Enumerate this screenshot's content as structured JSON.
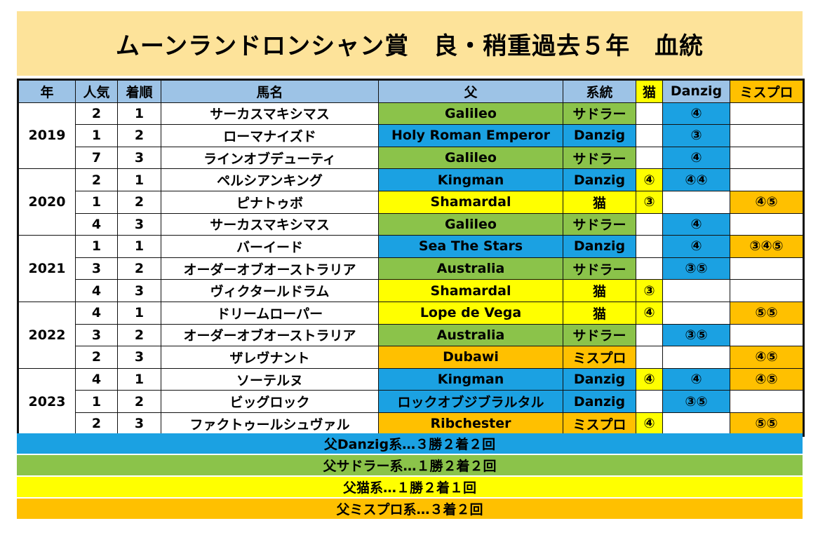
{
  "title": "ムーンランドロンシャン賞　良・稍重過去５年　血統",
  "headers": [
    "年",
    "人気",
    "着順",
    "馬名",
    "父",
    "系統",
    "猫",
    "Danzig",
    "ミスプロ"
  ],
  "colors": {
    "sadler": "#8bc34a",
    "danzig": "#1ba1e2",
    "neko": "#ffff00",
    "mispro": "#ffc000",
    "header": "#9dc3e6",
    "title_bg": "#fde39a"
  },
  "years": [
    {
      "year": "2019",
      "rows": [
        {
          "pop": "2",
          "place": "1",
          "horse": "サーカスマキシマス",
          "sire": "Galileo",
          "line": "サドラー",
          "cat": "sadler",
          "neko": "",
          "danzig": "④",
          "mispro": ""
        },
        {
          "pop": "1",
          "place": "2",
          "horse": "ローマナイズド",
          "sire": "Holy Roman Emperor",
          "line": "Danzig",
          "cat": "danzig",
          "neko": "",
          "danzig": "③",
          "mispro": ""
        },
        {
          "pop": "7",
          "place": "3",
          "horse": "ラインオブデューティ",
          "sire": "Galileo",
          "line": "サドラー",
          "cat": "sadler",
          "neko": "",
          "danzig": "④",
          "mispro": ""
        }
      ]
    },
    {
      "year": "2020",
      "rows": [
        {
          "pop": "2",
          "place": "1",
          "horse": "ペルシアンキング",
          "sire": "Kingman",
          "line": "Danzig",
          "cat": "danzig",
          "neko": "④",
          "danzig": "④④",
          "mispro": ""
        },
        {
          "pop": "1",
          "place": "2",
          "horse": "ピナトゥボ",
          "sire": "Shamardal",
          "line": "猫",
          "cat": "neko",
          "neko": "③",
          "danzig": "",
          "mispro": "④⑤"
        },
        {
          "pop": "4",
          "place": "3",
          "horse": "サーカスマキシマス",
          "sire": "Galileo",
          "line": "サドラー",
          "cat": "sadler",
          "neko": "",
          "danzig": "④",
          "mispro": ""
        }
      ]
    },
    {
      "year": "2021",
      "rows": [
        {
          "pop": "1",
          "place": "1",
          "horse": "バーイード",
          "sire": "Sea The Stars",
          "line": "Danzig",
          "cat": "danzig",
          "neko": "",
          "danzig": "④",
          "mispro": "③④⑤"
        },
        {
          "pop": "3",
          "place": "2",
          "horse": "オーダーオブオーストラリア",
          "sire": "Australia",
          "line": "サドラー",
          "cat": "sadler",
          "neko": "",
          "danzig": "③⑤",
          "mispro": ""
        },
        {
          "pop": "4",
          "place": "3",
          "horse": "ヴィクタールドラム",
          "sire": "Shamardal",
          "line": "猫",
          "cat": "neko",
          "neko": "③",
          "danzig": "",
          "mispro": ""
        }
      ]
    },
    {
      "year": "2022",
      "rows": [
        {
          "pop": "4",
          "place": "1",
          "horse": "ドリームローパー",
          "sire": "Lope de Vega",
          "line": "猫",
          "cat": "neko",
          "neko": "④",
          "danzig": "",
          "mispro": "⑤⑤"
        },
        {
          "pop": "3",
          "place": "2",
          "horse": "オーダーオブオーストラリア",
          "sire": "Australia",
          "line": "サドラー",
          "cat": "sadler",
          "neko": "",
          "danzig": "③⑤",
          "mispro": ""
        },
        {
          "pop": "2",
          "place": "3",
          "horse": "ザレヴナント",
          "sire": "Dubawi",
          "line": "ミスプロ",
          "cat": "mispro",
          "neko": "",
          "danzig": "",
          "mispro": "④⑤"
        }
      ]
    },
    {
      "year": "2023",
      "rows": [
        {
          "pop": "4",
          "place": "1",
          "horse": "ソーテルヌ",
          "sire": "Kingman",
          "line": "Danzig",
          "cat": "danzig",
          "neko": "④",
          "danzig": "④",
          "mispro": "④⑤"
        },
        {
          "pop": "1",
          "place": "2",
          "horse": "ビッグロック",
          "sire": "ロックオブジブラルタル",
          "line": "Danzig",
          "cat": "danzig",
          "neko": "",
          "danzig": "③⑤",
          "mispro": ""
        },
        {
          "pop": "2",
          "place": "3",
          "horse": "ファクトゥールシュヴァル",
          "sire": "Ribchester",
          "line": "ミスプロ",
          "cat": "mispro",
          "neko": "④",
          "danzig": "",
          "mispro": "⑤⑤"
        }
      ]
    }
  ],
  "summary": [
    {
      "text": "父Danzig系…３勝２着２回",
      "cat": "danzig"
    },
    {
      "text": "父サドラー系…１勝２着２回",
      "cat": "sadler"
    },
    {
      "text": "父猫系…１勝２着１回",
      "cat": "neko"
    },
    {
      "text": "父ミスプロ系…３着２回",
      "cat": "mispro"
    }
  ]
}
